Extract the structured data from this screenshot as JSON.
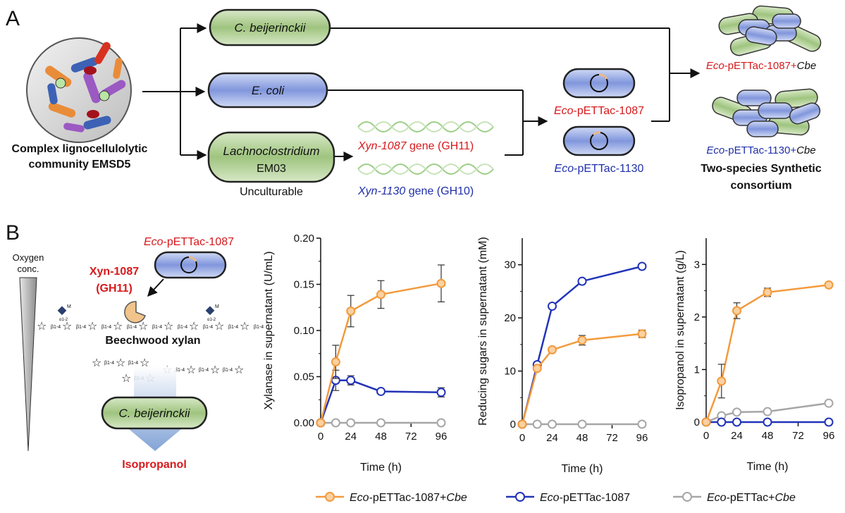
{
  "panel_a": {
    "label": "A",
    "community_line1": "Complex lignocellulolytic",
    "community_line2": "community EMSD5",
    "cbe_name": "C. beijerinckii",
    "ecoli_name": "E. coli",
    "lachno_name": "Lachnoclostridium",
    "lachno_strain": "EM03",
    "unculturable": "Unculturable",
    "gene1_name": "Xyn-1087",
    "gene1_suffix": " gene (GH11)",
    "gene2_name": "Xyn-1130",
    "gene2_suffix": " gene (GH10)",
    "strain1_prefix": "Eco",
    "strain1_rest": "-pETTac-1087",
    "strain2_prefix": "Eco",
    "strain2_rest": "-pETTac-1130",
    "consortium1_prefix": "Eco",
    "consortium1_mid": "-pETTac-1087+",
    "consortium1_suffix": "Cbe",
    "consortium2_prefix": "Eco",
    "consortium2_mid": "-pETTac-1130+",
    "consortium2_suffix": "Cbe",
    "synthetic_line1": "Two-species Synthetic",
    "synthetic_line2": "consortium"
  },
  "panel_b": {
    "label": "B",
    "oxygen_line1": "Oxygen",
    "oxygen_line2": "conc.",
    "strain_prefix": "Eco",
    "strain_rest": "-pETTac-1087",
    "enzyme_line1": "Xyn-1087",
    "enzyme_line2": "(GH11)",
    "substrate": "Beechwood xylan",
    "organism": "C. beijerinckii",
    "product": "Isopropanol",
    "bond_beta": "β1-4",
    "bond_alpha": "α1-2",
    "side_group": "M"
  },
  "legend": {
    "entries": [
      {
        "prefix": "Eco",
        "rest": "-pETTac-1087+",
        "suffix": "Cbe"
      },
      {
        "prefix": "Eco",
        "rest": "-pETTac-1087",
        "suffix": ""
      },
      {
        "prefix": "Eco",
        "rest": "-pETTac+",
        "suffix": "Cbe"
      }
    ]
  },
  "colors": {
    "orange": "#f39a3c",
    "blue": "#2233b8",
    "gray": "#a6a6a6",
    "red_text": "#d7191c",
    "blue_text": "#1f2fa8",
    "cell_blue": "#8ea3e0",
    "cell_green": "#a9c98a"
  },
  "chart_data": [
    {
      "type": "line",
      "xlabel": "Time (h)",
      "ylabel": "Xylanase in supernatant (U/mL)",
      "xticks": [
        "0",
        "24",
        "48",
        "72",
        "96"
      ],
      "yticks": [
        "0.00",
        "0.05",
        "0.10",
        "0.15",
        "0.20"
      ],
      "xlim": [
        0,
        96
      ],
      "ylim": [
        0,
        0.2
      ],
      "series": [
        {
          "name": "Eco-pETTac-1087+Cbe",
          "color": "orange",
          "x": [
            0,
            12,
            24,
            48,
            96
          ],
          "values": [
            0,
            0.066,
            0.121,
            0.139,
            0.151
          ],
          "errors": [
            0,
            0.018,
            0.017,
            0.015,
            0.02
          ]
        },
        {
          "name": "Eco-pETTac-1087",
          "color": "blue",
          "x": [
            0,
            12,
            24,
            48,
            96
          ],
          "values": [
            0,
            0.046,
            0.046,
            0.034,
            0.033
          ],
          "errors": [
            0,
            0.011,
            0.005,
            0.002,
            0.005
          ]
        },
        {
          "name": "Eco-pETTac+Cbe",
          "color": "gray",
          "x": [
            0,
            12,
            24,
            48,
            96
          ],
          "values": [
            0,
            0,
            0,
            0,
            0
          ],
          "errors": [
            0,
            0,
            0,
            0,
            0
          ]
        }
      ]
    },
    {
      "type": "line",
      "xlabel": "Time (h)",
      "ylabel": "Reducing sugars in supernatant (mM)",
      "xticks": [
        "0",
        "24",
        "48",
        "72",
        "96"
      ],
      "yticks": [
        "0",
        "10",
        "20",
        "30"
      ],
      "xlim": [
        0,
        96
      ],
      "ylim": [
        0,
        35
      ],
      "series": [
        {
          "name": "Eco-pETTac-1087+Cbe",
          "color": "orange",
          "x": [
            0,
            12,
            24,
            48,
            96
          ],
          "values": [
            0,
            10.5,
            14.0,
            15.8,
            17.0
          ],
          "errors": [
            0,
            0.4,
            0.5,
            0.9,
            0.7
          ]
        },
        {
          "name": "Eco-pETTac-1087",
          "color": "blue",
          "x": [
            0,
            12,
            24,
            48,
            96
          ],
          "values": [
            0,
            11.2,
            22.2,
            26.9,
            29.7
          ],
          "errors": [
            0,
            0.3,
            0.4,
            0.3,
            0.3
          ]
        },
        {
          "name": "Eco-pETTac+Cbe",
          "color": "gray",
          "x": [
            0,
            12,
            24,
            48,
            96
          ],
          "values": [
            0,
            0,
            0,
            0,
            0
          ],
          "errors": [
            0,
            0,
            0,
            0,
            0
          ]
        }
      ]
    },
    {
      "type": "line",
      "xlabel": "Time (h)",
      "ylabel": "Isopropanol in supernatant (g/L)",
      "xticks": [
        "0",
        "24",
        "48",
        "72",
        "96"
      ],
      "yticks": [
        "0",
        "1",
        "2",
        "3"
      ],
      "xlim": [
        0,
        96
      ],
      "ylim": [
        0,
        3.5
      ],
      "series": [
        {
          "name": "Eco-pETTac-1087+Cbe",
          "color": "orange",
          "x": [
            0,
            12,
            24,
            48,
            96
          ],
          "values": [
            0,
            0.78,
            2.12,
            2.47,
            2.61
          ],
          "errors": [
            0,
            0.32,
            0.15,
            0.08,
            0.04
          ]
        },
        {
          "name": "Eco-pETTac-1087",
          "color": "blue",
          "x": [
            0,
            12,
            24,
            48,
            96
          ],
          "values": [
            0,
            0,
            0,
            0,
            0
          ],
          "errors": [
            0,
            0,
            0,
            0,
            0
          ]
        },
        {
          "name": "Eco-pETTac+Cbe",
          "color": "gray",
          "x": [
            0,
            12,
            24,
            48,
            96
          ],
          "values": [
            0,
            0.12,
            0.19,
            0.2,
            0.36
          ],
          "errors": [
            0,
            0,
            0,
            0,
            0
          ]
        }
      ]
    }
  ]
}
